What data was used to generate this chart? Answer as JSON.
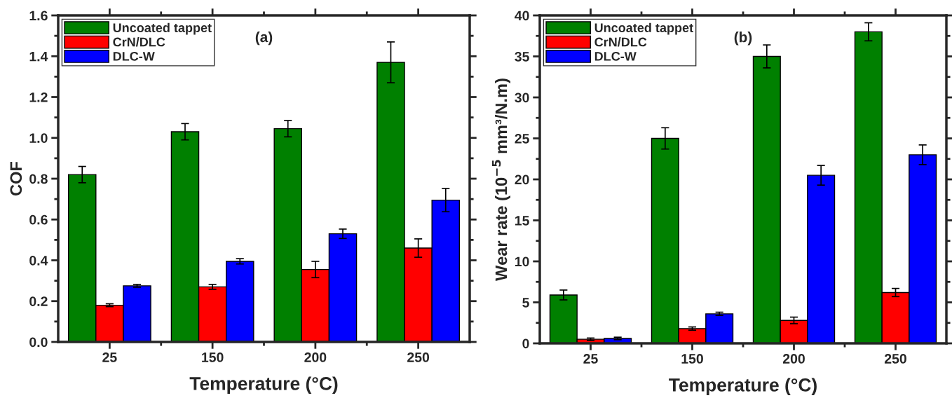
{
  "chart_data": [
    {
      "type": "bar",
      "title": "(a)",
      "xlabel": "Temperature (°C)",
      "ylabel": "COF",
      "categories": [
        "25",
        "150",
        "200",
        "250"
      ],
      "series": [
        {
          "name": "Uncoated tappet",
          "color": "#008000",
          "values": [
            0.82,
            1.03,
            1.045,
            1.37
          ],
          "errors": [
            0.04,
            0.04,
            0.04,
            0.1
          ]
        },
        {
          "name": "CrN/DLC",
          "color": "#ff0000",
          "values": [
            0.18,
            0.27,
            0.355,
            0.46
          ],
          "errors": [
            0.007,
            0.012,
            0.04,
            0.045
          ]
        },
        {
          "name": "DLC-W",
          "color": "#0000ff",
          "values": [
            0.275,
            0.395,
            0.53,
            0.695
          ],
          "errors": [
            0.007,
            0.013,
            0.023,
            0.057
          ]
        }
      ],
      "ylim": [
        0,
        1.6
      ],
      "yticks": [
        {
          "value": 0,
          "label": "0.0"
        },
        0.2,
        0.4,
        0.6,
        0.8,
        {
          "value": 1,
          "label": "1.0"
        },
        1.2,
        1.4,
        1.6
      ],
      "legend": "top left",
      "grid": false
    },
    {
      "type": "bar",
      "title": "(b)",
      "xlabel": "Temperature (°C)",
      "ylabel": "Wear rate (10$^{−5}$ mm³/N.m)",
      "categories": [
        "25",
        "150",
        "200",
        "250"
      ],
      "series": [
        {
          "name": "Uncoated tappet",
          "color": "#008000",
          "values": [
            5.9,
            25,
            35,
            38
          ],
          "errors": [
            0.6,
            1.3,
            1.4,
            1.1
          ]
        },
        {
          "name": "CrN/DLC",
          "color": "#ff0000",
          "values": [
            0.5,
            1.8,
            2.8,
            6.2
          ],
          "errors": [
            0.15,
            0.2,
            0.4,
            0.5
          ]
        },
        {
          "name": "DLC-W",
          "color": "#0000ff",
          "values": [
            0.6,
            3.6,
            20.5,
            23
          ],
          "errors": [
            0.15,
            0.2,
            1.2,
            1.2
          ]
        }
      ],
      "ylim": [
        0,
        40
      ],
      "yticks": [
        0,
        5,
        10,
        15,
        20,
        25,
        30,
        35,
        40
      ],
      "legend": "top left",
      "grid": false
    }
  ]
}
